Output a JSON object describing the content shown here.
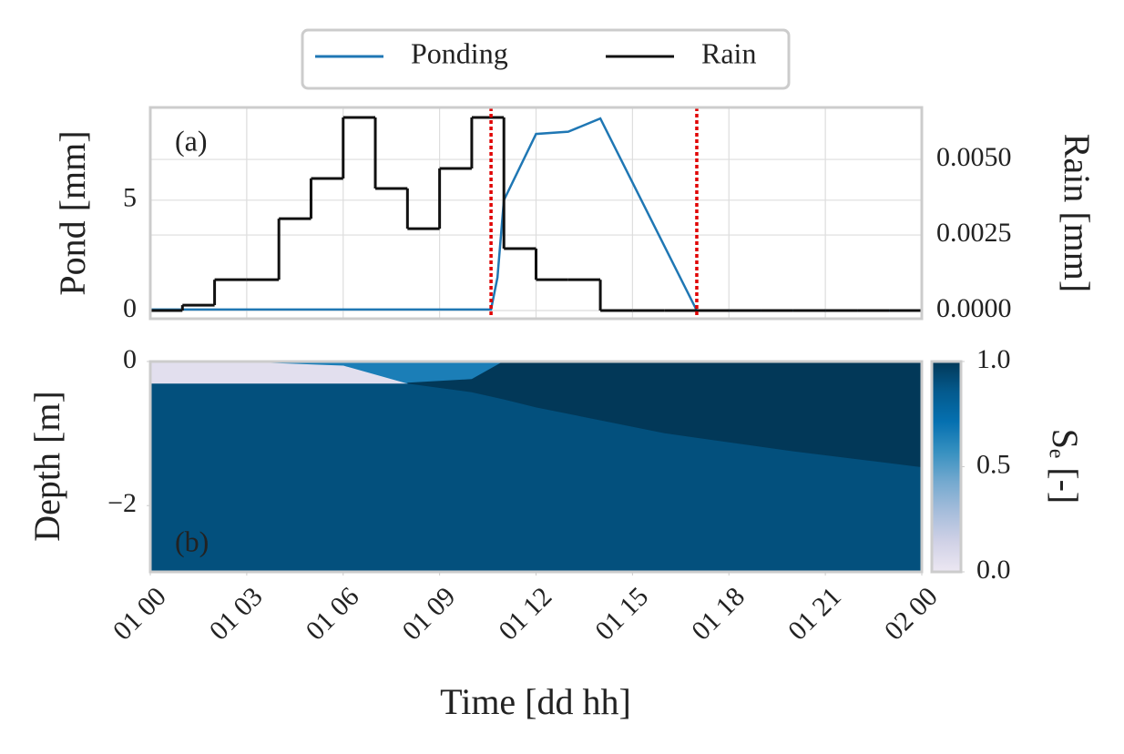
{
  "chart_data": [
    {
      "type": "line",
      "label": "(a)",
      "ylabel": "Pond [mm]",
      "y2label": "Rain [mm]",
      "xlim": [
        0,
        24
      ],
      "ylim": [
        -0.37,
        9.2
      ],
      "yticks": [
        0,
        5
      ],
      "y2lim": [
        -0.00027,
        0.00672
      ],
      "y2ticks": [
        {
          "value": 0,
          "label": "0.0000"
        },
        {
          "value": 0.0025,
          "label": "0.0025"
        },
        {
          "value": 0.005,
          "label": "0.0050"
        }
      ],
      "grid": true,
      "legend": "upper center",
      "series": [
        {
          "name": "Ponding",
          "color": "#1f77b4",
          "x": [
            0,
            10.6,
            10.8,
            11.0,
            12.0,
            13.0,
            14.0,
            17.0,
            24
          ],
          "values": [
            0.05,
            0.05,
            1.5,
            5.0,
            8.0,
            8.1,
            8.7,
            0,
            0
          ]
        },
        {
          "name": "Rain",
          "color": "#111111",
          "axis": "y2",
          "step": "post",
          "x": [
            0,
            1,
            2,
            3,
            4,
            5,
            6,
            7,
            8,
            9,
            10,
            11,
            12,
            13,
            14,
            15,
            16,
            17,
            18,
            19,
            20,
            21,
            22,
            23
          ],
          "values": [
            0,
            0.00018,
            0.00102,
            0.00102,
            0.00304,
            0.00437,
            0.00639,
            0.00404,
            0.00271,
            0.0047,
            0.00639,
            0.00205,
            0.00102,
            0.00102,
            0,
            0,
            0,
            0,
            0,
            0,
            0,
            0,
            0,
            0
          ]
        }
      ],
      "vlines": {
        "color": "#e00000",
        "x": [
          10.6,
          17.0
        ]
      }
    },
    {
      "type": "heatmap",
      "label": "(b)",
      "ylabel": "Depth [m]",
      "xlabel": "Time [dd hh]",
      "xlim": [
        0,
        24
      ],
      "xticks": [
        {
          "value": 0,
          "label": "01 00"
        },
        {
          "value": 3,
          "label": "01 03"
        },
        {
          "value": 6,
          "label": "01 06"
        },
        {
          "value": 9,
          "label": "01 09"
        },
        {
          "value": 12,
          "label": "01 12"
        },
        {
          "value": 15,
          "label": "01 15"
        },
        {
          "value": 18,
          "label": "01 18"
        },
        {
          "value": 21,
          "label": "01 21"
        },
        {
          "value": 24,
          "label": "02 00"
        }
      ],
      "ylim": [
        -2.92,
        0
      ],
      "yticks": [
        0,
        {
          "value": -2,
          "label": "−2"
        }
      ],
      "colormap": [
        "#ece7f2",
        "#d0d1e6",
        "#a6bddb",
        "#74a9cf",
        "#3690c0",
        "#0570b0",
        "#045a8d",
        "#023858"
      ],
      "clim": [
        0,
        1
      ],
      "cticks": [
        {
          "value": 0,
          "label": "0.0"
        },
        {
          "value": 0.5,
          "label": "0.5"
        },
        {
          "value": 1,
          "label": "1.0"
        }
      ],
      "colorbar_label": "Sₑ [-]",
      "zones": [
        {
          "x": [
            0,
            24
          ],
          "top": [
            0,
            0
          ],
          "bottom": [
            -2.92,
            -2.92
          ],
          "value": 0.9
        },
        {
          "x": [
            0,
            8
          ],
          "top": [
            0,
            0
          ],
          "bottom": [
            -0.3,
            -0.3
          ],
          "value": 0.05
        },
        {
          "x": [
            3,
            6,
            8,
            10,
            11
          ],
          "top": [
            0,
            0,
            0,
            0,
            0
          ],
          "bottom": [
            0,
            -0.05,
            -0.3,
            -0.25,
            0
          ],
          "value": 0.65
        },
        {
          "x": [
            8,
            10,
            11,
            12,
            16,
            20,
            24
          ],
          "top": [
            -0.3,
            -0.25,
            0,
            0,
            0,
            0,
            0
          ],
          "bottom": [
            -0.3,
            -0.42,
            -0.52,
            -0.63,
            -0.99,
            -1.24,
            -1.46
          ],
          "value": 1.0
        }
      ]
    }
  ]
}
